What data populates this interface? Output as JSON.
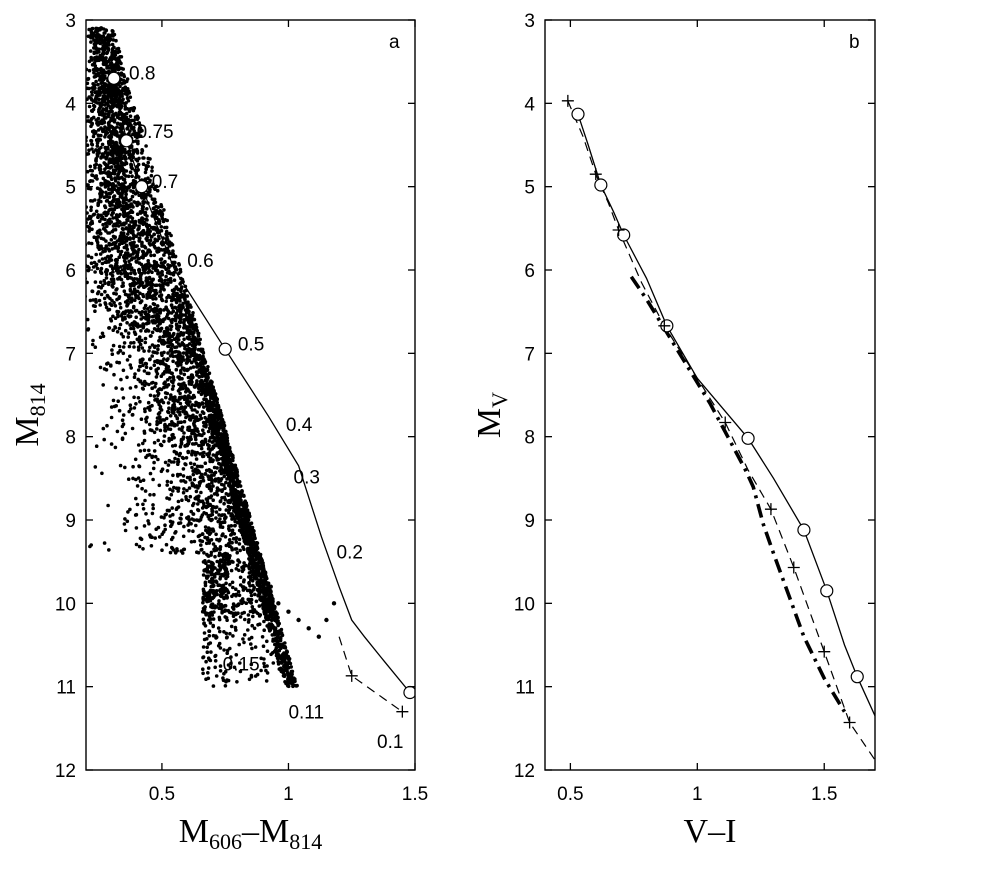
{
  "chart_data": [
    {
      "type": "scatter",
      "panel_label": "a",
      "xlabel": "M606–M814",
      "ylabel": "M814",
      "xlim": [
        0.2,
        1.5
      ],
      "ylim": [
        12,
        3
      ],
      "y_inverted": true,
      "x_ticks": [
        0.5,
        1,
        1.5
      ],
      "x_tick_labels": [
        "0.5",
        "1",
        "1.5"
      ],
      "y_ticks": [
        3,
        4,
        5,
        6,
        7,
        8,
        9,
        10,
        11,
        12
      ],
      "y_tick_labels": [
        "3",
        "4",
        "5",
        "6",
        "7",
        "8",
        "9",
        "10",
        "11",
        "12"
      ],
      "grid": false,
      "series": [
        {
          "style": "black dots",
          "description": "cluster stars",
          "x": [
            0.26,
            0.28,
            0.3,
            0.3,
            0.32,
            0.31,
            0.33,
            0.34,
            0.35,
            0.36,
            0.38,
            0.4,
            0.41,
            0.43,
            0.45,
            0.47,
            0.49,
            0.52,
            0.54,
            0.57,
            0.6,
            0.63,
            0.66,
            0.68,
            0.7,
            0.72,
            0.75,
            0.78,
            0.8,
            0.82,
            0.85,
            0.88,
            0.9,
            0.93,
            0.96,
            1.0,
            1.04,
            1.08,
            1.12,
            1.15,
            1.18
          ],
          "y": [
            3.1,
            3.5,
            3.9,
            4.2,
            4.5,
            4.7,
            4.9,
            5.1,
            5.3,
            5.5,
            5.7,
            5.9,
            6.0,
            6.2,
            6.3,
            6.5,
            6.6,
            6.7,
            6.9,
            7.0,
            7.2,
            7.4,
            7.6,
            7.8,
            8.0,
            8.2,
            8.4,
            8.6,
            8.8,
            9.0,
            9.2,
            9.4,
            9.6,
            9.8,
            10.0,
            10.1,
            10.2,
            10.3,
            10.4,
            10.2,
            10.0
          ]
        },
        {
          "style": "solid line with open circles",
          "x": [
            0.31,
            0.36,
            0.42,
            0.55,
            0.75,
            0.92,
            1.04,
            1.13,
            1.2,
            1.25,
            1.3,
            1.38,
            1.48
          ],
          "y": [
            3.7,
            4.45,
            5.0,
            6.0,
            6.95,
            7.75,
            8.35,
            9.2,
            9.8,
            10.2,
            10.4,
            10.7,
            11.07
          ]
        },
        {
          "style": "dashed line with plus markers",
          "x": [
            1.2,
            1.25,
            1.45
          ],
          "y": [
            10.4,
            10.87,
            11.3
          ]
        }
      ],
      "marker_points_circle": [
        {
          "x": 0.31,
          "y": 3.7
        },
        {
          "x": 0.36,
          "y": 4.45
        },
        {
          "x": 0.42,
          "y": 5.0
        },
        {
          "x": 0.75,
          "y": 6.95
        },
        {
          "x": 1.48,
          "y": 11.07
        }
      ],
      "marker_points_plus": [
        {
          "x": 1.25,
          "y": 10.87
        },
        {
          "x": 1.45,
          "y": 11.3
        }
      ],
      "annotations": [
        {
          "text": "0.8",
          "x": 0.37,
          "y": 3.63
        },
        {
          "text": "0.75",
          "x": 0.4,
          "y": 4.33
        },
        {
          "text": "0.7",
          "x": 0.46,
          "y": 4.93
        },
        {
          "text": "0.6",
          "x": 0.6,
          "y": 5.88
        },
        {
          "text": "0.5",
          "x": 0.8,
          "y": 6.88
        },
        {
          "text": "0.4",
          "x": 0.99,
          "y": 7.85
        },
        {
          "text": "0.3",
          "x": 1.02,
          "y": 8.48
        },
        {
          "text": "0.2",
          "x": 1.19,
          "y": 9.38
        },
        {
          "text": "0.15",
          "x": 0.74,
          "y": 10.72
        },
        {
          "text": "0.11",
          "x": 1.0,
          "y": 11.3
        },
        {
          "text": "0.1",
          "x": 1.35,
          "y": 11.65
        }
      ]
    },
    {
      "type": "line",
      "panel_label": "b",
      "xlabel": "V–I",
      "ylabel": "MV",
      "xlim": [
        0.4,
        1.7
      ],
      "ylim": [
        12,
        3
      ],
      "y_inverted": true,
      "x_ticks": [
        0.5,
        1,
        1.5
      ],
      "x_tick_labels": [
        "0.5",
        "1",
        "1.5"
      ],
      "y_ticks": [
        3,
        4,
        5,
        6,
        7,
        8,
        9,
        10,
        11,
        12
      ],
      "y_tick_labels": [
        "3",
        "4",
        "5",
        "6",
        "7",
        "8",
        "9",
        "10",
        "11",
        "12"
      ],
      "grid": false,
      "series": [
        {
          "style": "solid line with open circles",
          "x": [
            0.53,
            0.57,
            0.62,
            0.67,
            0.71,
            0.8,
            0.88,
            1.0,
            1.2,
            1.3,
            1.42,
            1.51,
            1.58,
            1.63,
            1.7
          ],
          "y": [
            4.13,
            4.5,
            4.98,
            5.3,
            5.58,
            6.1,
            6.67,
            7.3,
            8.02,
            8.5,
            9.12,
            9.85,
            10.5,
            10.88,
            11.35
          ]
        },
        {
          "style": "dashed line with plus markers",
          "x": [
            0.49,
            0.55,
            0.6,
            0.65,
            0.69,
            0.78,
            0.87,
            1.0,
            1.11,
            1.2,
            1.29,
            1.38,
            1.5,
            1.6,
            1.7
          ],
          "y": [
            3.97,
            4.4,
            4.85,
            5.2,
            5.52,
            6.15,
            6.67,
            7.3,
            7.83,
            8.4,
            8.87,
            9.57,
            10.58,
            11.43,
            11.88
          ]
        },
        {
          "style": "thick dash-dot line",
          "x": [
            0.74,
            0.8,
            0.88,
            0.95,
            1.05,
            1.12,
            1.19,
            1.22,
            1.26,
            1.3,
            1.36,
            1.42,
            1.5,
            1.58
          ],
          "y": [
            6.08,
            6.35,
            6.75,
            7.1,
            7.6,
            8.0,
            8.4,
            8.6,
            9.05,
            9.4,
            9.9,
            10.4,
            10.9,
            11.3
          ]
        }
      ],
      "marker_points_circle": [
        {
          "x": 0.53,
          "y": 4.13
        },
        {
          "x": 0.62,
          "y": 4.98
        },
        {
          "x": 0.71,
          "y": 5.58
        },
        {
          "x": 0.88,
          "y": 6.67
        },
        {
          "x": 1.2,
          "y": 8.02
        },
        {
          "x": 1.42,
          "y": 9.12
        },
        {
          "x": 1.51,
          "y": 9.85
        },
        {
          "x": 1.63,
          "y": 10.88
        }
      ],
      "marker_points_plus": [
        {
          "x": 0.49,
          "y": 3.97
        },
        {
          "x": 0.6,
          "y": 4.85
        },
        {
          "x": 0.69,
          "y": 5.52
        },
        {
          "x": 0.87,
          "y": 6.67
        },
        {
          "x": 1.11,
          "y": 7.83
        },
        {
          "x": 1.29,
          "y": 8.87
        },
        {
          "x": 1.38,
          "y": 9.57
        },
        {
          "x": 1.5,
          "y": 10.58
        },
        {
          "x": 1.6,
          "y": 11.43
        }
      ]
    }
  ]
}
